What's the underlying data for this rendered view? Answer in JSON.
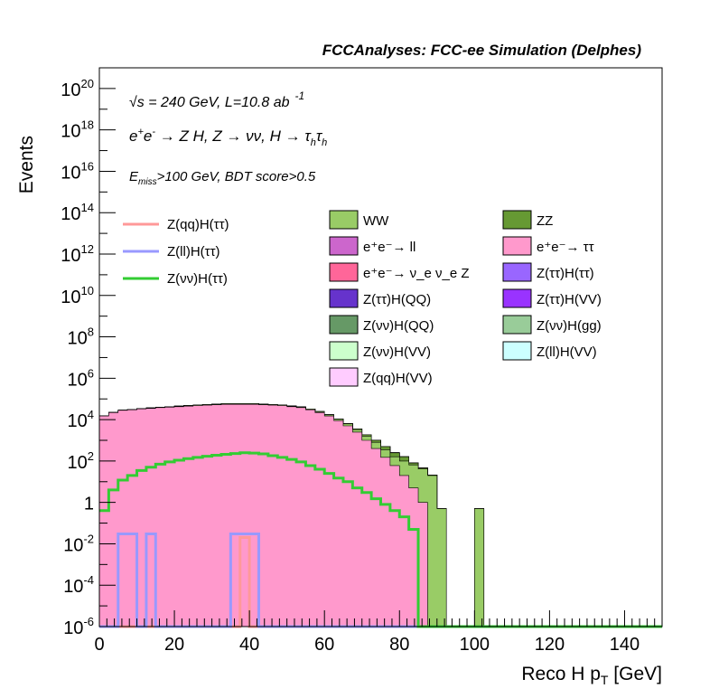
{
  "chart_data": {
    "type": "area",
    "title": "FCCAnalyses: FCC-ee Simulation (Delphes)",
    "xlabel": "Reco H p_T [GeV]",
    "ylabel": "Events",
    "xlim": [
      0,
      150
    ],
    "ylim": [
      1e-06,
      1e+21
    ],
    "yscale": "log",
    "x_ticks": [
      "0",
      "20",
      "40",
      "60",
      "80",
      "100",
      "120",
      "140"
    ],
    "y_ticks": [
      {
        "base": "10",
        "exp": "-6",
        "value": 1e-06
      },
      {
        "base": "10",
        "exp": "-4",
        "value": 0.0001
      },
      {
        "base": "10",
        "exp": "-2",
        "value": 0.01
      },
      {
        "base": "1",
        "exp": "",
        "value": 1
      },
      {
        "base": "10",
        "exp": "2",
        "value": 100.0
      },
      {
        "base": "10",
        "exp": "4",
        "value": 10000.0
      },
      {
        "base": "10",
        "exp": "6",
        "value": 1000000.0
      },
      {
        "base": "10",
        "exp": "8",
        "value": 100000000.0
      },
      {
        "base": "10",
        "exp": "10",
        "value": 10000000000.0
      },
      {
        "base": "10",
        "exp": "12",
        "value": 1000000000000.0
      },
      {
        "base": "10",
        "exp": "14",
        "value": 100000000000000.0
      },
      {
        "base": "10",
        "exp": "16",
        "value": 1e+16
      },
      {
        "base": "10",
        "exp": "18",
        "value": 1e+18
      },
      {
        "base": "10",
        "exp": "20",
        "value": 1e+20
      }
    ],
    "annotations": {
      "energy": "√s = 240 GeV, L=10.8 ab",
      "lumi_exp": "-1",
      "process": "e⁺e⁻ → Z H, Z → νν, H → τ_h τ_h",
      "cuts": "E_miss>100 GeV, BDT score>0.5"
    },
    "bin_width": 2.5,
    "bins_x": [
      0,
      2.5,
      5,
      7.5,
      10,
      12.5,
      15,
      17.5,
      20,
      22.5,
      25,
      27.5,
      30,
      32.5,
      35,
      37.5,
      40,
      42.5,
      45,
      47.5,
      50,
      52.5,
      55,
      57.5,
      60,
      62.5,
      65,
      67.5,
      70,
      72.5,
      75,
      77.5,
      80,
      82.5,
      85,
      87.5,
      90,
      92.5,
      95,
      97.5,
      100
    ],
    "stack": [
      {
        "name": "e⁺e⁻ → ττ",
        "color": "#ff99cc",
        "values": [
          15000,
          22000,
          28000,
          30000,
          33000,
          35000,
          38000,
          40000,
          42000,
          45000,
          48000,
          50000,
          52000,
          55000,
          55000,
          55000,
          55000,
          52000,
          50000,
          48000,
          42000,
          38000,
          30000,
          22000,
          15000,
          9000,
          5000,
          2500,
          1000,
          400,
          150,
          60,
          20,
          5,
          1,
          0,
          0,
          0,
          0,
          0,
          0
        ]
      },
      {
        "name": "WW",
        "color": "#99cc66",
        "values": [
          100,
          200,
          400,
          700,
          1000,
          1400,
          1800,
          2200,
          2600,
          3000,
          3200,
          3500,
          3600,
          3800,
          3900,
          4000,
          3900,
          3800,
          3500,
          3200,
          3000,
          2800,
          2600,
          2200,
          2000,
          1500,
          1200,
          800,
          600,
          400,
          200,
          100,
          80,
          60,
          40,
          20,
          0.5,
          0,
          0,
          0,
          0.5
        ]
      },
      {
        "name": "ZZ",
        "color": "#669933",
        "values": [
          1,
          5,
          20,
          50,
          80,
          120,
          150,
          200,
          250,
          300,
          350,
          380,
          400,
          420,
          430,
          440,
          440,
          430,
          400,
          380,
          350,
          300,
          320,
          350,
          380,
          400,
          350,
          300,
          250,
          200,
          150,
          90,
          60,
          15,
          5,
          1,
          0,
          0,
          0,
          0,
          0
        ]
      },
      {
        "name": "e⁺e⁻ → ν_e ν_e Z",
        "color": "#ff6699",
        "values": [
          0.5,
          1,
          1.5,
          2,
          2.5,
          3,
          3.5,
          4,
          4.5,
          5,
          5,
          5,
          5,
          5,
          5,
          5,
          5,
          5,
          5,
          5,
          4.5,
          4.2,
          4,
          3.8,
          3.5,
          3.2,
          3,
          2.8,
          2.5,
          2.2,
          2,
          1.8,
          1.6,
          1.2,
          0.8,
          0.3,
          0,
          0,
          0,
          0,
          0
        ]
      },
      {
        "name": "e⁺e⁻ → ll",
        "color": "#cc66cc",
        "values": [
          0.01,
          0.02,
          0.005,
          0.001,
          0,
          0,
          0,
          0,
          0,
          0,
          0,
          0,
          0,
          0,
          0,
          0,
          0,
          0,
          0,
          0,
          0,
          0,
          0,
          0,
          0,
          0,
          0,
          0,
          0,
          0,
          0,
          0,
          0,
          0,
          0,
          0,
          0,
          0,
          0,
          0,
          0
        ]
      },
      {
        "name": "Z(ττ)H(ττ)",
        "color": "#9966ff",
        "values": [
          0,
          0.005,
          0.01,
          0.02,
          0.05,
          0.08,
          0.1,
          0.1,
          0.12,
          0.13,
          0.15,
          0.15,
          0.18,
          0.2,
          0.2,
          0.2,
          0.18,
          0.15,
          0.1,
          0.06,
          0.04,
          0.03,
          0.02,
          0,
          0,
          0,
          0,
          0,
          0,
          0,
          0,
          0,
          0,
          0,
          0,
          0,
          0,
          0,
          0,
          0,
          0
        ]
      },
      {
        "name": "Z(νν)H(QQ)",
        "color": "#669966",
        "values": [
          0,
          0,
          0.001,
          0.003,
          0.005,
          0.008,
          0.01,
          0.015,
          0.02,
          0.02,
          0.025,
          0.03,
          0.03,
          0.035,
          0.035,
          0.035,
          0.03,
          0.03,
          0.025,
          0.02,
          0.015,
          0.01,
          0.008,
          0.004,
          0,
          0,
          0,
          0,
          0,
          0,
          0,
          0,
          0,
          0,
          0,
          0,
          0,
          0,
          0,
          0,
          0
        ]
      },
      {
        "name": "Z(νν)H(VV)",
        "color": "#ccffcc",
        "values": [
          0,
          0,
          0,
          0,
          0,
          0,
          0,
          0,
          0,
          0,
          0,
          0,
          0,
          0,
          0,
          0,
          0,
          0,
          0,
          0.02,
          0.03,
          0.03,
          0.03,
          0.03,
          0.03,
          0.02,
          0.02,
          0.015,
          0.01,
          0.008,
          0,
          0,
          0,
          0,
          0,
          0,
          0,
          0,
          0,
          0,
          0
        ]
      }
    ],
    "lines": [
      {
        "name": "Z(qq)H(ττ)",
        "color": "#ff9999",
        "values": [
          0,
          0,
          0,
          0,
          0,
          0,
          0,
          0,
          0,
          0,
          0,
          0,
          0,
          0,
          0,
          0.02,
          0,
          0,
          0,
          0,
          0,
          0,
          0,
          0,
          0,
          0,
          0,
          0,
          0,
          0,
          0,
          0,
          0,
          0,
          0,
          0,
          0,
          0,
          0,
          0,
          0
        ]
      },
      {
        "name": "Z(ll)H(ττ)",
        "color": "#9999ff",
        "values": [
          0,
          0,
          0.03,
          0.03,
          0,
          0.03,
          0,
          0,
          0,
          0,
          0,
          0,
          0,
          0,
          0.03,
          0.03,
          0.03,
          0,
          0,
          0,
          0,
          0,
          0,
          0,
          0,
          0,
          0,
          0,
          0,
          0,
          0,
          0,
          0,
          0,
          0,
          0,
          0,
          0,
          0,
          0,
          0
        ]
      },
      {
        "name": "Z(νν)H(ττ)",
        "color": "#33cc33",
        "values": [
          0.4,
          4,
          12,
          20,
          35,
          50,
          70,
          90,
          110,
          130,
          150,
          170,
          190,
          210,
          230,
          250,
          240,
          220,
          180,
          150,
          120,
          90,
          60,
          40,
          25,
          15,
          10,
          5,
          3,
          1.5,
          0.8,
          0.4,
          0.2,
          0.05,
          0,
          0,
          0,
          0,
          0,
          0,
          0
        ]
      }
    ],
    "legend_left": [
      {
        "label": "Z(qq)H(ττ)",
        "color": "#ff9999"
      },
      {
        "label": "Z(ll)H(ττ)",
        "color": "#9999ff"
      },
      {
        "label": "Z(νν)H(ττ)",
        "color": "#33cc33"
      }
    ],
    "legend_fill": [
      {
        "label": "WW",
        "color": "#99cc66"
      },
      {
        "label": "ZZ",
        "color": "#669933"
      },
      {
        "label": "e⁺e⁻→ ll",
        "color": "#cc66cc"
      },
      {
        "label": "e⁺e⁻→ ττ",
        "color": "#ff99cc"
      },
      {
        "label": "e⁺e⁻→ ν_e ν_e Z",
        "color": "#ff6699"
      },
      {
        "label": "Z(ττ)H(ττ)",
        "color": "#9966ff"
      },
      {
        "label": "Z(ττ)H(QQ)",
        "color": "#6633cc"
      },
      {
        "label": "Z(ττ)H(VV)",
        "color": "#9933ff"
      },
      {
        "label": "Z(νν)H(QQ)",
        "color": "#669966"
      },
      {
        "label": "Z(νν)H(gg)",
        "color": "#99cc99"
      },
      {
        "label": "Z(νν)H(VV)",
        "color": "#ccffcc"
      },
      {
        "label": "Z(ll)H(VV)",
        "color": "#ccffff"
      },
      {
        "label": "Z(qq)H(VV)",
        "color": "#ffccff"
      }
    ]
  }
}
